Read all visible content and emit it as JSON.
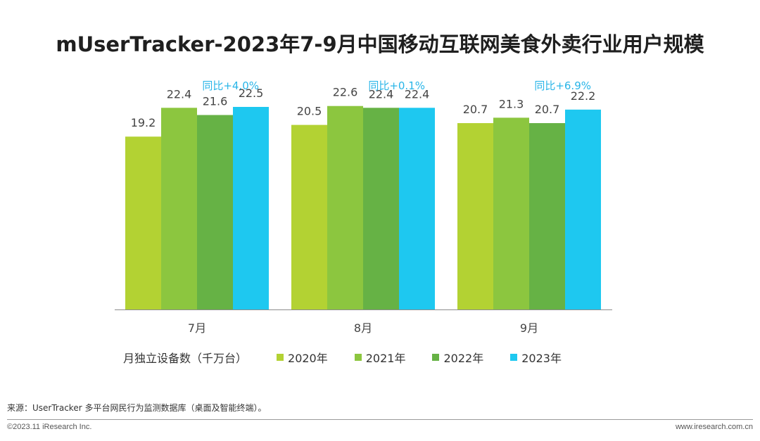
{
  "title": "mUserTracker-2023年7-9月中国移动互联网美食外卖行业用户规模",
  "chart_data": {
    "type": "bar",
    "categories": [
      "7月",
      "8月",
      "9月"
    ],
    "series": [
      {
        "name": "2020年",
        "values": [
          19.2,
          20.5,
          20.7
        ],
        "color": "#b3d233"
      },
      {
        "name": "2021年",
        "values": [
          22.4,
          22.6,
          21.3
        ],
        "color": "#8cc63f"
      },
      {
        "name": "2022年",
        "values": [
          21.6,
          22.4,
          20.7
        ],
        "color": "#66b245"
      },
      {
        "name": "2023年",
        "values": [
          22.5,
          22.4,
          22.2
        ],
        "color": "#1ec8f0"
      }
    ],
    "yoy_labels": [
      "同比+4.0%",
      "同比+0.1%",
      "同比+6.9%"
    ],
    "yoy_color": "#29b5e8",
    "measure_label": "月独立设备数（千万台）",
    "ylim": [
      0,
      25
    ],
    "grid": false,
    "legend_position": "bottom"
  },
  "footer": {
    "source": "来源：UserTracker 多平台网民行为监测数据库（桌面及智能终端）。",
    "copyright": "©2023.11 iResearch Inc.",
    "website": "www.iresearch.com.cn"
  }
}
